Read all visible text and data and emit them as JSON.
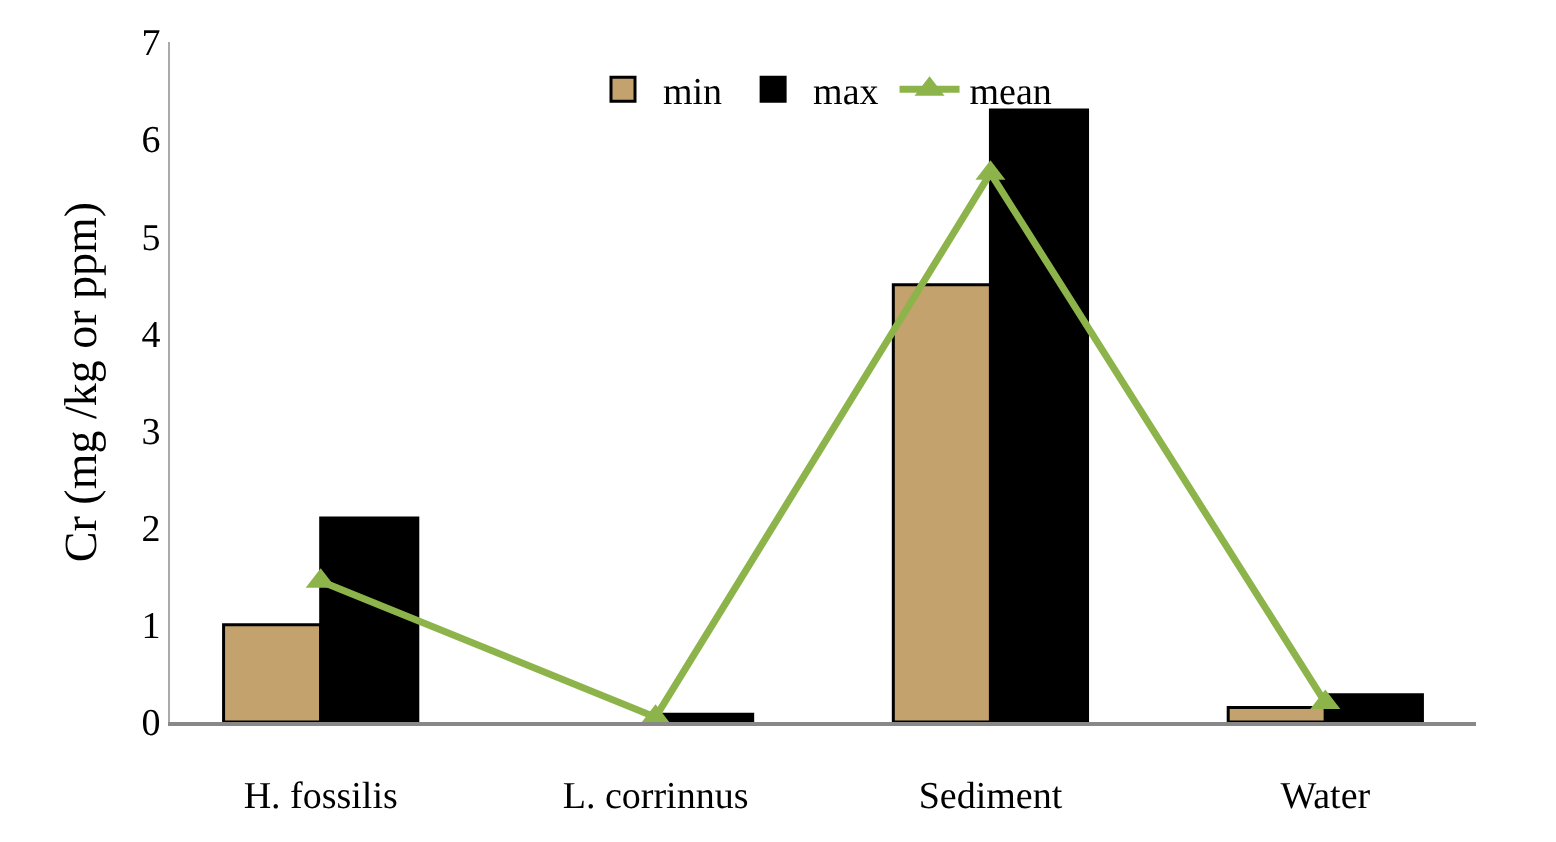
{
  "chart_data": {
    "type": "bar",
    "ylabel": "Cr (mg /kg or ppm)",
    "categories": [
      "H. fossilis",
      "L. corrinnus",
      "Sediment",
      "Water"
    ],
    "series": [
      {
        "name": "min",
        "color": "#c4a26e",
        "values": [
          1.0,
          null,
          4.5,
          0.15
        ]
      },
      {
        "name": "max",
        "color": "#000000",
        "values": [
          2.1,
          0.08,
          6.3,
          0.28
        ]
      },
      {
        "name": "mean",
        "type": "line",
        "color": "#8db44a",
        "marker": "triangle",
        "values": [
          1.45,
          0.05,
          5.65,
          0.2
        ]
      }
    ],
    "ylim": [
      0,
      7
    ],
    "yticks": [
      0,
      1,
      2,
      3,
      4,
      5,
      6,
      7
    ],
    "grid": false,
    "legend": "top"
  }
}
